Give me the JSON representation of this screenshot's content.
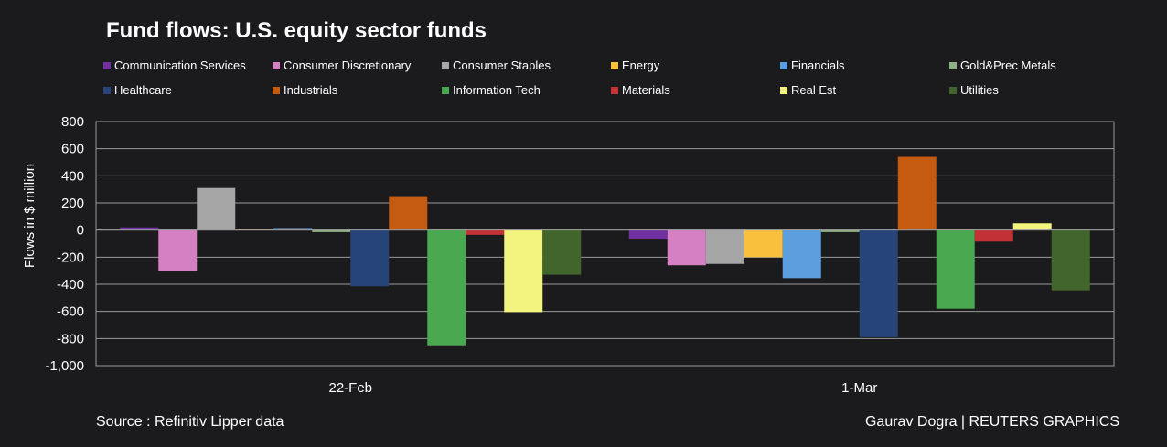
{
  "source": "Source : Refinitiv Lipper data",
  "credit": "Gaurav Dogra | REUTERS GRAPHICS",
  "chart_data": {
    "type": "bar",
    "title": "Fund flows: U.S. equity sector funds",
    "xlabel": "",
    "ylabel": "Flows in $ million",
    "ylim": [
      -1000,
      800
    ],
    "yticks": [
      800,
      600,
      400,
      200,
      0,
      -200,
      -400,
      -600,
      -800,
      -1000
    ],
    "ytick_labels": [
      "800",
      "600",
      "400",
      "200",
      "0",
      "-200",
      "-400",
      "-600",
      "-800",
      "-1,000"
    ],
    "grid": true,
    "legend_position": "top",
    "categories": [
      "22-Feb",
      "1-Mar"
    ],
    "series": [
      {
        "name": "Communication Services",
        "color": "#7030a0",
        "values": [
          20,
          -70
        ]
      },
      {
        "name": "Consumer Discretionary",
        "color": "#d480c3",
        "values": [
          -300,
          -260
        ]
      },
      {
        "name": "Consumer Staples",
        "color": "#a6a6a6",
        "values": [
          310,
          -250
        ]
      },
      {
        "name": "Energy",
        "color": "#f8c03d",
        "values": [
          5,
          -200
        ]
      },
      {
        "name": "Financials",
        "color": "#5d9fde",
        "values": [
          15,
          -355
        ]
      },
      {
        "name": "Gold&Prec Metals",
        "color": "#8fb082",
        "values": [
          -15,
          -15
        ]
      },
      {
        "name": "Healthcare",
        "color": "#264478",
        "values": [
          -415,
          -790
        ]
      },
      {
        "name": "Industrials",
        "color": "#c55a11",
        "values": [
          250,
          540
        ]
      },
      {
        "name": "Information Tech",
        "color": "#49a850",
        "values": [
          -850,
          -580
        ]
      },
      {
        "name": "Materials",
        "color": "#c23234",
        "values": [
          -35,
          -85
        ]
      },
      {
        "name": "Real Est",
        "color": "#f2f47d",
        "values": [
          -605,
          50
        ]
      },
      {
        "name": "Utilities",
        "color": "#41652a",
        "values": [
          -330,
          -445
        ]
      }
    ]
  }
}
